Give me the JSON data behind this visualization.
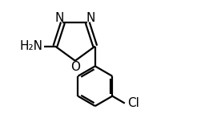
{
  "bg_color": "#ffffff",
  "bond_color": "#000000",
  "text_color": "#000000",
  "lw": 1.6,
  "fs": 11.0,
  "figsize": [
    2.76,
    1.42
  ],
  "dpi": 100,
  "xlim": [
    0,
    10
  ],
  "ylim": [
    0,
    5.14
  ]
}
